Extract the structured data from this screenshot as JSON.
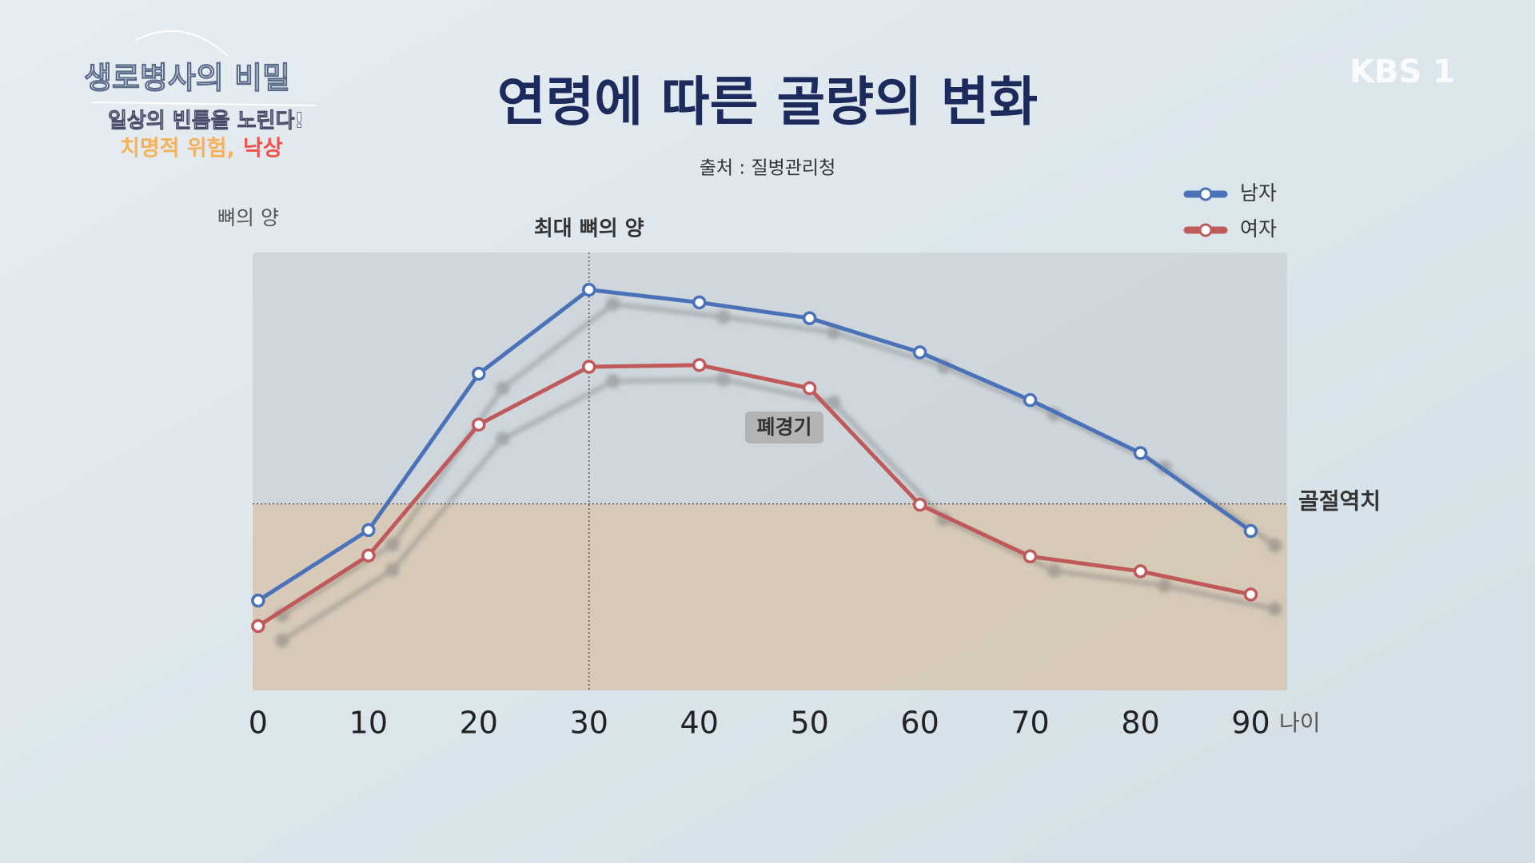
{
  "branding": {
    "program": "생로병사의 비밀",
    "tagline": "일상의 빈틈을 노린다!",
    "episode_a": "치명적 위험,",
    "episode_b": "낙상",
    "channel": "KBS 1"
  },
  "chart_data": {
    "type": "line",
    "title": "연령에 따른 골량의 변화",
    "subtitle": "출처 : 질병관리청",
    "y_label": "뼈의 양",
    "x_label": "나이",
    "x": [
      0,
      10,
      20,
      30,
      40,
      50,
      60,
      70,
      80,
      90
    ],
    "xlim": [
      -0.5,
      93.3
    ],
    "xticks": [
      0,
      10,
      20,
      30,
      40,
      50,
      60,
      70,
      80,
      90
    ],
    "ylim": [
      0,
      100
    ],
    "series": [
      {
        "name": "남자",
        "color": "#4a72b8",
        "values": [
          20.5,
          36.6,
          72.3,
          91.5,
          88.6,
          85.0,
          77.2,
          66.3,
          54.2,
          36.4
        ]
      },
      {
        "name": "여자",
        "color": "#c05a5a",
        "values": [
          14.7,
          30.8,
          60.7,
          73.9,
          74.3,
          69.0,
          42.4,
          30.6,
          27.2,
          21.9
        ]
      }
    ],
    "vline": {
      "x": 30,
      "label": "최대 뼈의 양"
    },
    "hline": {
      "y": 42.6,
      "label": "골절역치"
    },
    "annotation": "폐경기",
    "legend": "top-right"
  }
}
